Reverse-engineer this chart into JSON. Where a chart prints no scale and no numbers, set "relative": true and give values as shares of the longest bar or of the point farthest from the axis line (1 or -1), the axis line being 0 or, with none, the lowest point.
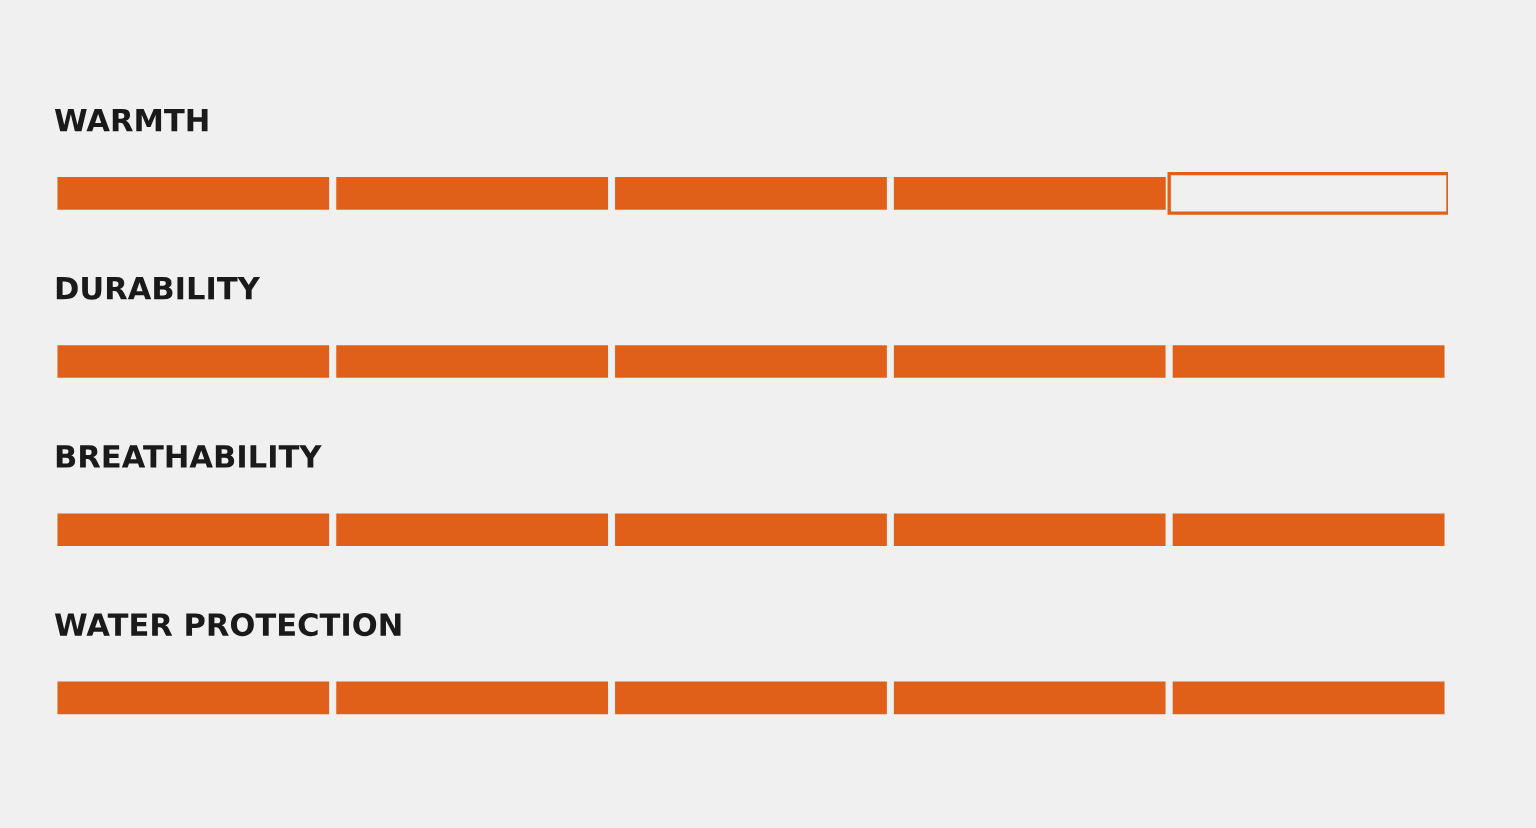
{
  "chart_data": {
    "type": "bar",
    "orientation": "horizontal",
    "stacked": true,
    "relative": true,
    "categories": [
      "WARMTH",
      "DURABILITY",
      "BREATHABILITY",
      "WATER PROTECTION"
    ],
    "series": [
      {
        "color": "#e0601a",
        "values": [
          0.2,
          0.2,
          0.2,
          0.2
        ]
      },
      {
        "color": "#e0601a",
        "values": [
          0.2,
          0.2,
          0.2,
          0.2
        ]
      },
      {
        "color": "#e0601a",
        "values": [
          0.2,
          0.2,
          0.2,
          0.2
        ]
      },
      {
        "color": "#e0601a",
        "values": [
          0.2,
          0.2,
          0.2,
          0.2
        ]
      },
      {
        "color": "#e0601a",
        "values": [
          null,
          0.2,
          0.2,
          0.2
        ]
      },
      {
        "color": "#f0f0f0",
        "values": [
          0.2,
          null,
          null,
          null
        ]
      }
    ]
  }
}
